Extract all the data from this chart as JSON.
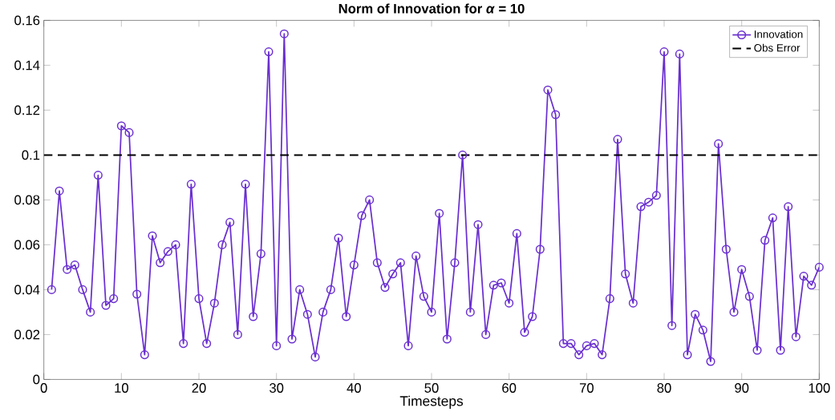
{
  "chart_data": {
    "type": "line",
    "title": "Norm of Innovation for *α* = 10",
    "xlabel": "Timesteps",
    "x": [
      1,
      2,
      3,
      4,
      5,
      6,
      7,
      8,
      9,
      10,
      11,
      12,
      13,
      14,
      15,
      16,
      17,
      18,
      19,
      20,
      21,
      22,
      23,
      24,
      25,
      26,
      27,
      28,
      29,
      30,
      31,
      32,
      33,
      34,
      35,
      36,
      37,
      38,
      39,
      40,
      41,
      42,
      43,
      44,
      45,
      46,
      47,
      48,
      49,
      50,
      51,
      52,
      53,
      54,
      55,
      56,
      57,
      58,
      59,
      60,
      61,
      62,
      63,
      64,
      65,
      66,
      67,
      68,
      69,
      70,
      71,
      72,
      73,
      74,
      75,
      76,
      77,
      78,
      79,
      80,
      81,
      82,
      83,
      84,
      85,
      86,
      87,
      88,
      89,
      90,
      91,
      92,
      93,
      94,
      95,
      96,
      97,
      98,
      99,
      100
    ],
    "series": [
      {
        "name": "Innovation",
        "color": "#6a2fd0",
        "values": [
          0.04,
          0.084,
          0.049,
          0.051,
          0.04,
          0.03,
          0.091,
          0.033,
          0.036,
          0.113,
          0.11,
          0.038,
          0.011,
          0.064,
          0.052,
          0.057,
          0.06,
          0.016,
          0.087,
          0.036,
          0.016,
          0.034,
          0.06,
          0.07,
          0.02,
          0.087,
          0.028,
          0.056,
          0.146,
          0.015,
          0.154,
          0.018,
          0.04,
          0.029,
          0.01,
          0.03,
          0.04,
          0.063,
          0.028,
          0.051,
          0.073,
          0.08,
          0.052,
          0.041,
          0.047,
          0.052,
          0.015,
          0.055,
          0.037,
          0.03,
          0.074,
          0.018,
          0.052,
          0.1,
          0.03,
          0.069,
          0.02,
          0.042,
          0.043,
          0.034,
          0.065,
          0.021,
          0.028,
          0.058,
          0.129,
          0.118,
          0.016,
          0.016,
          0.011,
          0.015,
          0.016,
          0.011,
          0.036,
          0.107,
          0.047,
          0.034,
          0.077,
          0.079,
          0.082,
          0.146,
          0.024,
          0.145,
          0.011,
          0.029,
          0.022,
          0.008,
          0.105,
          0.058,
          0.03,
          0.049,
          0.037,
          0.013,
          0.062,
          0.072,
          0.013,
          0.077,
          0.019,
          0.046,
          0.042,
          0.05
        ]
      }
    ],
    "ref_lines": [
      {
        "axis": "y",
        "value": 0.1,
        "label": "Obs Error",
        "color": "#000000",
        "line_style": "dashed"
      }
    ],
    "xlim": [
      0,
      100
    ],
    "ylim": [
      0,
      0.16
    ],
    "xticks": [
      0,
      10,
      20,
      30,
      40,
      50,
      60,
      70,
      80,
      90,
      100
    ],
    "yticks": [
      0,
      0.02,
      0.04,
      0.06,
      0.08,
      0.1,
      0.12,
      0.14,
      0.16
    ],
    "marker": "circle",
    "line_style": "solid",
    "grid": false,
    "legend": "top right"
  }
}
